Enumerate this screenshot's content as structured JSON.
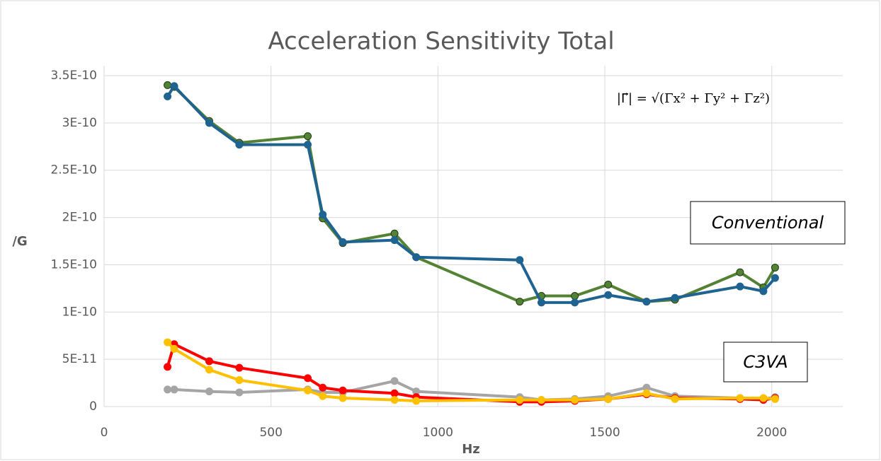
{
  "chart_data": {
    "type": "line",
    "title": "Acceleration Sensitivity Total",
    "xlabel": "Hz",
    "ylabel": "/G",
    "annotations": [
      "Conventional",
      "C3VA"
    ],
    "formula": "|Γ⃗| = √(Γx² + Γy² + Γz²)",
    "x": [
      190,
      210,
      315,
      405,
      610,
      655,
      715,
      870,
      935,
      1245,
      1310,
      1410,
      1510,
      1625,
      1710,
      1905,
      1975,
      2010
    ],
    "series": [
      {
        "color": "#548235",
        "values": [
          3.4e-10,
          3.38e-10,
          3.02e-10,
          2.79e-10,
          2.86e-10,
          1.99e-10,
          1.73e-10,
          1.83e-10,
          1.58e-10,
          1.11e-10,
          1.17e-10,
          1.17e-10,
          1.29e-10,
          1.11e-10,
          1.13e-10,
          1.42e-10,
          1.26e-10,
          1.47e-10
        ]
      },
      {
        "color": "#1f6391",
        "values": [
          3.28e-10,
          3.39e-10,
          3e-10,
          2.77e-10,
          2.77e-10,
          2.03e-10,
          1.74e-10,
          1.76e-10,
          1.58e-10,
          1.55e-10,
          1.1e-10,
          1.1e-10,
          1.18e-10,
          1.11e-10,
          1.15e-10,
          1.27e-10,
          1.22e-10,
          1.36e-10
        ]
      },
      {
        "color": "#a5a5a5",
        "values": [
          1.8e-11,
          1.8e-11,
          1.6e-11,
          1.5e-11,
          1.8e-11,
          1.5e-11,
          1.5e-11,
          2.7e-11,
          1.6e-11,
          1e-11,
          7e-12,
          8e-12,
          1.1e-11,
          2e-11,
          1.1e-11,
          9e-12,
          8e-12,
          1e-11
        ]
      },
      {
        "color": "#ff0000",
        "values": [
          4.2e-11,
          6.6e-11,
          4.8e-11,
          4.1e-11,
          3e-11,
          2e-11,
          1.7e-11,
          1.4e-11,
          1e-11,
          5e-12,
          5e-12,
          6e-12,
          8e-12,
          1.3e-11,
          9e-12,
          8e-12,
          7e-12,
          9e-12
        ]
      },
      {
        "color": "#ffc000",
        "values": [
          6.8e-11,
          6.1e-11,
          3.9e-11,
          2.8e-11,
          1.7e-11,
          1.1e-11,
          9e-12,
          7e-12,
          6e-12,
          7e-12,
          7e-12,
          7e-12,
          8e-12,
          1.4e-11,
          8e-12,
          9e-12,
          9e-12,
          8e-12
        ]
      }
    ],
    "xlim": [
      0,
      2200
    ],
    "xticks": [
      0,
      500,
      1000,
      1500,
      2000
    ],
    "ylim": [
      0,
      3.5e-10
    ],
    "yticks": [
      0,
      {
        "value": 5e-11,
        "label": "5E-11"
      },
      {
        "value": 1e-10,
        "label": "1E-10"
      },
      {
        "value": 1.5e-10,
        "label": "1.5E-10"
      },
      {
        "value": 2e-10,
        "label": "2E-10"
      },
      {
        "value": 2.5e-10,
        "label": "2.5E-10"
      },
      {
        "value": 3e-10,
        "label": "3E-10"
      },
      {
        "value": 3.5e-10,
        "label": "3.5E-10"
      }
    ],
    "grid": true
  }
}
